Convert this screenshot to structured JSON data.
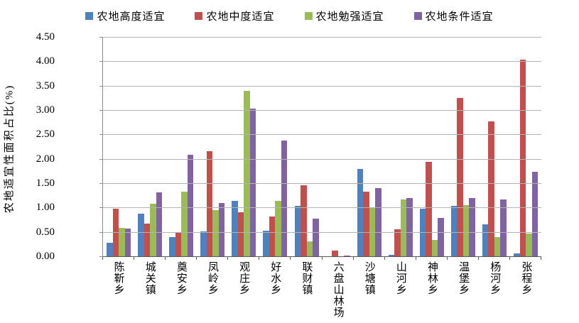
{
  "chart_data": {
    "type": "bar",
    "title": "",
    "xlabel": "",
    "ylabel": "农地适宜性面积占比(%)",
    "ylim": [
      0,
      4.5
    ],
    "ytick_step": 0.5,
    "ytick_decimals": 2,
    "grid": true,
    "legend_position": "top",
    "categories": [
      "陈靳乡",
      "城关镇",
      "奠安乡",
      "凤岭乡",
      "观庄乡",
      "好水乡",
      "联财镇",
      "六盘山林场",
      "沙塘镇",
      "山河乡",
      "神林乡",
      "温堡乡",
      "杨河乡",
      "张程乡"
    ],
    "series": [
      {
        "name": "农地高度适宜",
        "color": "#4F81BD",
        "values": [
          0.28,
          0.87,
          0.39,
          0.51,
          1.14,
          0.52,
          1.03,
          0.0,
          1.79,
          0.03,
          0.98,
          1.03,
          0.65,
          0.06
        ]
      },
      {
        "name": "农地中度适宜",
        "color": "#C0504D",
        "values": [
          0.97,
          0.67,
          0.48,
          2.15,
          0.91,
          0.82,
          1.45,
          0.11,
          1.33,
          0.56,
          1.94,
          3.25,
          2.77,
          4.03
        ]
      },
      {
        "name": "农地勉强适宜",
        "color": "#9BBB59",
        "values": [
          0.58,
          1.08,
          1.32,
          0.95,
          3.39,
          1.14,
          0.31,
          0.0,
          0.99,
          1.17,
          0.34,
          1.05,
          0.39,
          0.47
        ]
      },
      {
        "name": "农地条件适宜",
        "color": "#8064A2",
        "values": [
          0.57,
          1.31,
          2.09,
          1.09,
          3.03,
          2.38,
          0.77,
          0.02,
          1.4,
          1.19,
          0.79,
          1.19,
          1.16,
          1.74
        ]
      }
    ],
    "colors": {
      "gridline": "#b3b3b3",
      "y_axis": "#8c8c8c",
      "x_axis": "#595959",
      "background": "#ffffff",
      "text": "#000000"
    }
  }
}
